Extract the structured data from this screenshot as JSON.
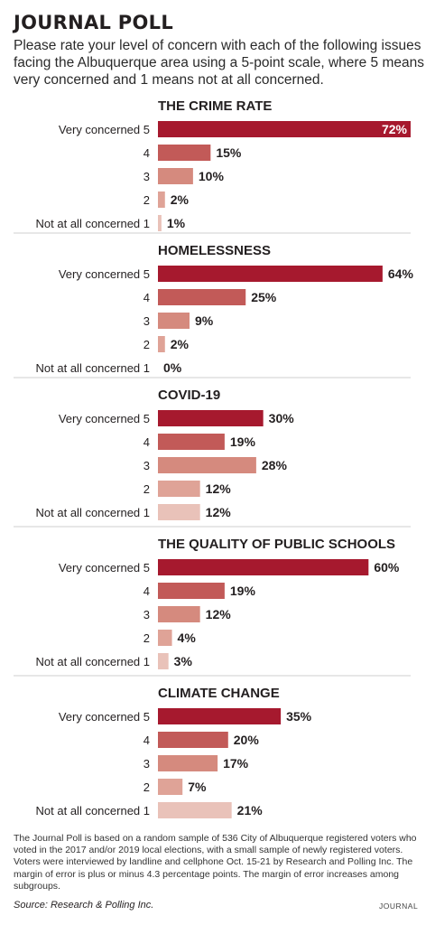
{
  "header": {
    "title": "JOURNAL POLL",
    "subtitle": "Please rate your level of concern with each of the following issues facing the Albuquerque area using a 5-point scale, where 5 means very concerned and 1 means not at all concerned."
  },
  "colors": [
    "#a6192e",
    "#c25a58",
    "#d58a7e",
    "#dfa397",
    "#e9c2b9"
  ],
  "chart_data": {
    "type": "bar",
    "orientation": "horizontal",
    "categories": [
      "Very concerned 5",
      "4",
      "3",
      "2",
      "Not at all concerned 1"
    ],
    "value_unit": "%",
    "xlim": [
      0,
      72
    ],
    "grid": false,
    "series": [
      {
        "name": "THE CRIME RATE",
        "values": [
          72,
          15,
          10,
          2,
          1
        ],
        "labels": [
          "72%",
          "15%",
          "10%",
          "2%",
          "1%"
        ]
      },
      {
        "name": "HOMELESSNESS",
        "values": [
          64,
          25,
          9,
          2,
          0
        ],
        "labels": [
          "64%",
          "25%",
          "9%",
          "2%",
          "0%"
        ]
      },
      {
        "name": "COVID-19",
        "values": [
          30,
          19,
          28,
          12,
          12
        ],
        "labels": [
          "30%",
          "19%",
          "28%",
          "12%",
          "12%"
        ]
      },
      {
        "name": "THE QUALITY OF PUBLIC SCHOOLS",
        "values": [
          60,
          19,
          12,
          4,
          3
        ],
        "labels": [
          "60%",
          "19%",
          "12%",
          "4%",
          "3%"
        ]
      },
      {
        "name": "CLIMATE CHANGE",
        "values": [
          35,
          20,
          17,
          7,
          21
        ],
        "labels": [
          "35%",
          "20%",
          "17%",
          "7%",
          "21%"
        ]
      }
    ]
  },
  "footer": {
    "note": "The Journal Poll is based on a random sample of 536 City of Albuquerque registered voters who voted in the 2017 and/or 2019 local elections, with a small sample of newly registered voters. Voters were interviewed by landline and cellphone Oct. 15-21 by Research and Polling Inc. The margin of error is plus or minus 4.3 percentage points. The margin of error increases among subgroups.",
    "source": "Source: Research & Polling Inc.",
    "brand": "JOURNAL"
  }
}
